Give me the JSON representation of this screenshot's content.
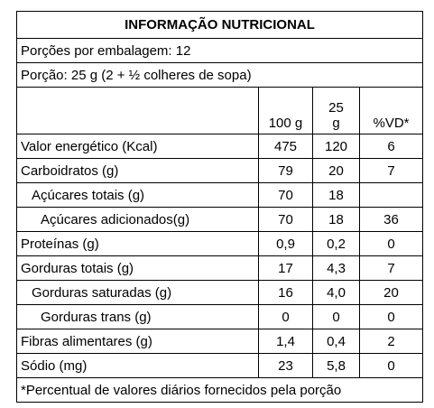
{
  "title": "INFORMAÇÃO NUTRICIONAL",
  "servings_per_package": "Porções por embalagem: 12",
  "serving_size": "Porção: 25 g (2 + ½ colheres de sopa)",
  "columns": [
    null,
    "100 g",
    "25 g",
    "%VD*"
  ],
  "rows": [
    {
      "label": "Valor energético (Kcal)",
      "indent": 0,
      "cells": [
        "475",
        "120",
        "6"
      ]
    },
    {
      "label": "Carboidratos (g)",
      "indent": 0,
      "cells": [
        "79",
        "20",
        "7"
      ]
    },
    {
      "label": "Açúcares totais (g)",
      "indent": 1,
      "cells": [
        "70",
        "18",
        null
      ]
    },
    {
      "label": "Açúcares adicionados(g)",
      "indent": 2,
      "cells": [
        "70",
        "18",
        "36"
      ]
    },
    {
      "label": "Proteínas (g)",
      "indent": 0,
      "cells": [
        "0,9",
        "0,2",
        "0"
      ]
    },
    {
      "label": "Gorduras totais (g)",
      "indent": 0,
      "cells": [
        "17",
        "4,3",
        "7"
      ]
    },
    {
      "label": "Gorduras saturadas (g)",
      "indent": 1,
      "cells": [
        "16",
        "4,0",
        "20"
      ]
    },
    {
      "label": "Gorduras trans (g)",
      "indent": 2,
      "cells": [
        "0",
        "0",
        "0"
      ]
    },
    {
      "label": "Fibras alimentares (g)",
      "indent": 0,
      "cells": [
        "1,4",
        "0,4",
        "2"
      ]
    },
    {
      "label": "Sódio (mg)",
      "indent": 0,
      "cells": [
        "23",
        "5,8",
        "0"
      ]
    }
  ],
  "footnote": "*Percentual de valores diários fornecidos pela porção"
}
